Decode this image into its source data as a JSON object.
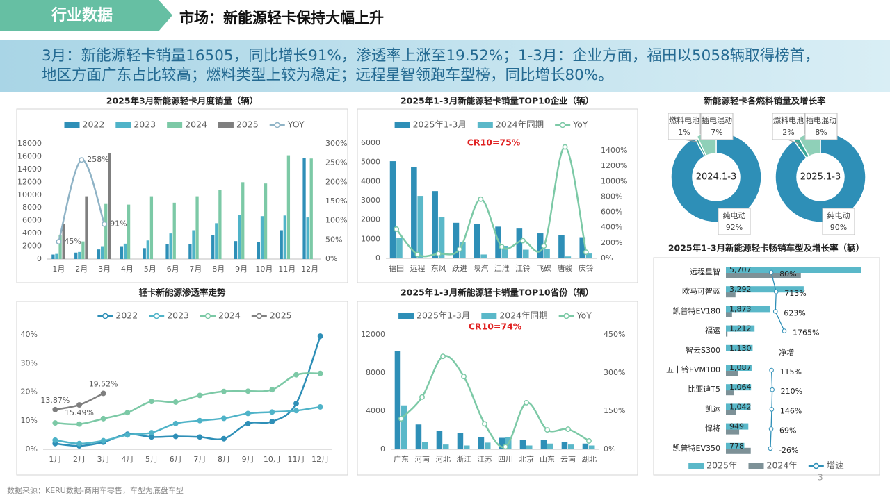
{
  "header": {
    "tag": "行业数据",
    "title": "市场：新能源轻卡保持大幅上升"
  },
  "summary": [
    "3月：新能源轻卡销量16505，同比增长91%，渗透率上涨至19.52%；1-3月：企业方面，福田以5058辆取得榜首，",
    "地区方面广东占比较高；燃料类型上较为稳定；远程星智领跑车型榜，同比增长80%。"
  ],
  "source": "数据来源：KERU数据-商用车零售，车型为底盘车型",
  "page": "3",
  "chart_data": [
    {
      "type": "bar",
      "title": "2025年3月新能源轻卡月度销量（辆）",
      "legend": "top",
      "categories": [
        "1月",
        "2月",
        "3月",
        "4月",
        "5月",
        "6月",
        "7月",
        "8月",
        "9月",
        "10月",
        "11月",
        "12月"
      ],
      "series": [
        {
          "name": "2022",
          "color": "#2e8fb7",
          "values": [
            700,
            1000,
            1500,
            2000,
            1700,
            2300,
            2300,
            3700,
            2800,
            2700,
            4500,
            15800
          ]
        },
        {
          "name": "2023",
          "color": "#4fb3c8",
          "values": [
            800,
            1100,
            2000,
            2400,
            2900,
            4000,
            4500,
            5600,
            6900,
            6700,
            6800,
            6500
          ]
        },
        {
          "name": "2024",
          "color": "#7cc9a6",
          "values": [
            3800,
            2750,
            8600,
            8500,
            9800,
            8800,
            9800,
            10800,
            12000,
            11800,
            16200,
            15700
          ]
        },
        {
          "name": "2025",
          "color": "#7f7f7f",
          "values": [
            5500,
            9800,
            16505,
            null,
            null,
            null,
            null,
            null,
            null,
            null,
            null,
            null
          ]
        },
        {
          "name": "YOY",
          "color": "#8fb3c6",
          "type": "line",
          "smooth": true,
          "axis": "y2",
          "values": [
            45,
            258,
            91,
            null,
            null,
            null,
            null,
            null,
            null,
            null,
            null,
            null
          ],
          "value_labels": [
            "45%",
            "258%",
            "91%",
            null,
            null,
            null,
            null,
            null,
            null,
            null,
            null,
            null
          ]
        }
      ],
      "ylim": [
        0,
        18000
      ],
      "yticks": [
        0,
        2000,
        4000,
        6000,
        8000,
        10000,
        12000,
        14000,
        16000,
        18000
      ],
      "y2lim": [
        0,
        300
      ],
      "y2ticks": [
        {
          "value": 0,
          "label": "0%"
        },
        {
          "value": 50,
          "label": "50%"
        },
        {
          "value": 100,
          "label": "100%"
        },
        {
          "value": 150,
          "label": "150%"
        },
        {
          "value": 200,
          "label": "200%"
        },
        {
          "value": 250,
          "label": "250%"
        },
        {
          "value": 300,
          "label": "300%"
        }
      ]
    },
    {
      "type": "bar",
      "title": "2025年1-3月新能源轻卡销量TOP10企业（辆）",
      "annotation": "CR10=75%",
      "legend": "top",
      "categories": [
        "福田",
        "远程",
        "东风",
        "跃进",
        "陕汽",
        "江淮",
        "江铃",
        "飞碟",
        "唐骏",
        "庆铃"
      ],
      "series": [
        {
          "name": "2025年1-3月",
          "color": "#2e8fb7",
          "values": [
            5058,
            4750,
            3500,
            1850,
            1800,
            1650,
            1550,
            1300,
            1200,
            1100
          ]
        },
        {
          "name": "2024年同期",
          "color": "#5ab8c9",
          "values": [
            1050,
            3250,
            2150,
            850,
            200,
            650,
            450,
            500,
            100,
            250
          ]
        },
        {
          "name": "YoY",
          "color": "#7cc9a6",
          "type": "line",
          "smooth": true,
          "axis": "y2",
          "values": [
            380,
            50,
            60,
            120,
            770,
            150,
            230,
            160,
            1450,
            80
          ]
        }
      ],
      "ylim": [
        0,
        6000
      ],
      "yticks": [
        0,
        1000,
        2000,
        3000,
        4000,
        5000,
        6000
      ],
      "y2lim": [
        0,
        1500
      ],
      "y2ticks": [
        {
          "value": 0,
          "label": "0%"
        },
        {
          "value": 200,
          "label": "200%"
        },
        {
          "value": 400,
          "label": "400%"
        },
        {
          "value": 600,
          "label": "600%"
        },
        {
          "value": 800,
          "label": "800%"
        },
        {
          "value": 1000,
          "label": "1000%"
        },
        {
          "value": 1200,
          "label": "1200%"
        },
        {
          "value": 1400,
          "label": "1400%"
        }
      ]
    },
    {
      "type": "pie",
      "title": "新能源轻卡各燃料销量及增长率",
      "pies": [
        {
          "center_label": "2024.1-3",
          "categories": [
            "纯电动",
            "燃料电池",
            "插电混动"
          ],
          "colors": [
            "#2e8fb7",
            "#3aa596",
            "#8fd0b8"
          ],
          "values": [
            92,
            1,
            7
          ],
          "value_labels": [
            "92%",
            "1%",
            "7%"
          ]
        },
        {
          "center_label": "2025.1-3",
          "categories": [
            "纯电动",
            "燃料电池",
            "插电混动"
          ],
          "colors": [
            "#2e8fb7",
            "#3aa596",
            "#8fd0b8"
          ],
          "values": [
            90,
            2,
            8
          ],
          "value_labels": [
            "90%",
            "2%",
            "8%"
          ]
        }
      ]
    },
    {
      "type": "line",
      "title": "轻卡新能源渗透率走势",
      "legend": "top",
      "categories": [
        "1月",
        "2月",
        "3月",
        "4月",
        "5月",
        "6月",
        "7月",
        "8月",
        "9月",
        "10月",
        "11月",
        "12月"
      ],
      "series": [
        {
          "name": "2022",
          "color": "#2e8fb7",
          "smooth": true,
          "values": [
            2,
            1.2,
            2.5,
            5.3,
            4.3,
            4.5,
            4.3,
            3.7,
            9,
            9.7,
            16,
            39.5
          ]
        },
        {
          "name": "2023",
          "color": "#4fb3c8",
          "smooth": true,
          "values": [
            3.2,
            2,
            3,
            5,
            5.8,
            9,
            10,
            10.8,
            12.5,
            13,
            13.5,
            14.8
          ]
        },
        {
          "name": "2024",
          "color": "#7cc9a6",
          "smooth": true,
          "values": [
            9.2,
            8.8,
            10.7,
            12.8,
            16.7,
            16.5,
            18.8,
            20.2,
            20.3,
            20.8,
            26,
            26.5
          ]
        },
        {
          "name": "2025",
          "color": "#7f7f7f",
          "smooth": true,
          "values": [
            13.87,
            15.49,
            19.52,
            null,
            null,
            null,
            null,
            null,
            null,
            null,
            null,
            null
          ],
          "value_labels": [
            "13.87%",
            "15.49%",
            "19.52%",
            null,
            null,
            null,
            null,
            null,
            null,
            null,
            null,
            null
          ]
        }
      ],
      "ylim": [
        0,
        40
      ],
      "yticks": [
        {
          "value": 0,
          "label": "0%"
        },
        {
          "value": 10,
          "label": "10%"
        },
        {
          "value": 20,
          "label": "20%"
        },
        {
          "value": 30,
          "label": "30%"
        },
        {
          "value": 40,
          "label": "40%"
        }
      ]
    },
    {
      "type": "bar",
      "title": "2025年1-3月新能源轻卡销量TOP10省份（辆）",
      "annotation": "CR10=74%",
      "legend": "top",
      "categories": [
        "广东",
        "河南",
        "河北",
        "浙江",
        "江苏",
        "四川",
        "北京",
        "山东",
        "云南",
        "湖北"
      ],
      "series": [
        {
          "name": "2025年1-3月",
          "color": "#2e8fb7",
          "values": [
            10300,
            2600,
            1900,
            1700,
            1300,
            1200,
            1000,
            1000,
            800,
            600
          ]
        },
        {
          "name": "2024年同期",
          "color": "#5ab8c9",
          "values": [
            4600,
            800,
            500,
            400,
            700,
            1300,
            400,
            600,
            500,
            400
          ]
        },
        {
          "name": "YoY",
          "color": "#7cc9a6",
          "type": "line",
          "smooth": true,
          "axis": "y2",
          "values": [
            120,
            205,
            365,
            286,
            100,
            10,
            183,
            76,
            79,
            33
          ]
        }
      ],
      "ylim": [
        0,
        12000
      ],
      "yticks": [
        0,
        4000,
        8000,
        12000
      ],
      "y2lim": [
        0,
        450
      ],
      "y2ticks": [
        {
          "value": 0,
          "label": "0%"
        },
        {
          "value": 150,
          "label": "150%"
        },
        {
          "value": 300,
          "label": "300%"
        },
        {
          "value": 450,
          "label": "450%"
        }
      ]
    },
    {
      "type": "hbar",
      "title": "2025年1-3月新能源轻卡畅销车型及增长率（辆）",
      "legend": "bottom",
      "categories": [
        "远程星智",
        "欧马可智蓝",
        "凯普特EV180",
        "福运",
        "智云S300",
        "五十铃EVM100",
        "比亚迪T5",
        "凯运",
        "悍将",
        "凯普特EV350"
      ],
      "series": [
        {
          "name": "2025年",
          "color": "#5ab8c9",
          "values": [
            5707,
            3292,
            1873,
            1212,
            1130,
            1087,
            1064,
            1042,
            949,
            778
          ],
          "value_labels": [
            "5,707",
            "3,292",
            "1,873",
            "1,212",
            "1,130",
            "1,087",
            "1,064",
            "1,042",
            "949",
            "778"
          ]
        },
        {
          "name": "2024年",
          "color": "#7d9197",
          "values": [
            3171,
            405,
            259,
            65,
            0,
            506,
            343,
            424,
            562,
            1051
          ]
        },
        {
          "name": "增速",
          "color": "#2e8fb7",
          "type": "line",
          "values": [
            80,
            713,
            623,
            1765,
            null,
            115,
            210,
            146,
            69,
            -26
          ],
          "value_labels": [
            "80%",
            "713%",
            "623%",
            "1765%",
            "净增",
            "115%",
            "210%",
            "146%",
            "69%",
            "-26%"
          ]
        }
      ]
    }
  ]
}
